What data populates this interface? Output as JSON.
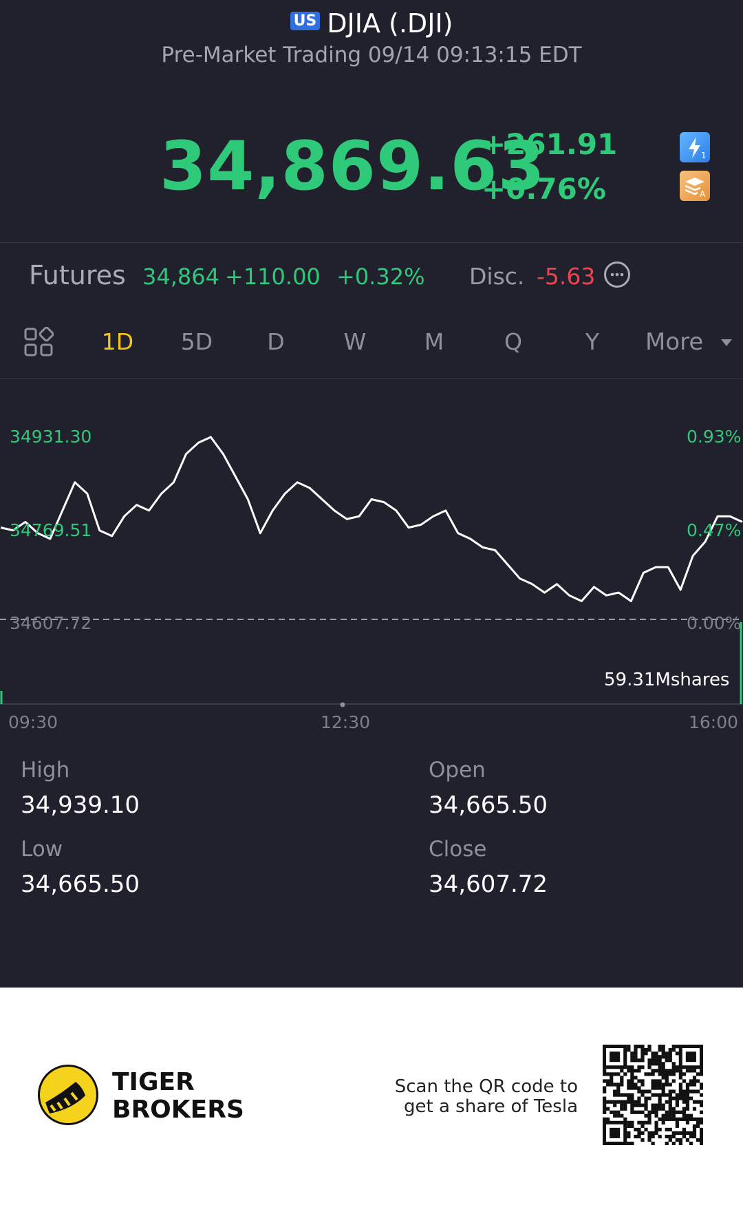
{
  "header": {
    "market_badge": "US",
    "title": "DJIA (.DJI)",
    "subtitle": "Pre-Market Trading 09/14 09:13:15 EDT"
  },
  "quote": {
    "price": "34,869.63",
    "change": "+261.91",
    "change_pct": "+0.76%"
  },
  "futures": {
    "label": "Futures",
    "price": "34,864",
    "change": "+110.00",
    "change_pct": "+0.32%",
    "disc_label": "Disc.",
    "disc_value": "-5.63"
  },
  "tabs": {
    "items": [
      "1D",
      "5D",
      "D",
      "W",
      "M",
      "Q",
      "Y"
    ],
    "active": "1D",
    "more_label": "More"
  },
  "chart_data": {
    "type": "line",
    "y_left_labels": [
      "34931.30",
      "34769.51",
      "34607.72"
    ],
    "y_right_labels": [
      "0.93%",
      "0.47%",
      "0.00%"
    ],
    "x_labels": [
      "09:30",
      "12:30",
      "16:00"
    ],
    "volume_label": "59.31Mshares",
    "ylim": [
      34607.72,
      34931.3
    ],
    "baseline": 34607.72,
    "series": [
      {
        "values": [
          34770,
          34765,
          34780,
          34760,
          34750,
          34800,
          34850,
          34830,
          34765,
          34755,
          34790,
          34810,
          34800,
          34830,
          34850,
          34900,
          34920,
          34930,
          34900,
          34860,
          34820,
          34760,
          34800,
          34830,
          34850,
          34840,
          34820,
          34800,
          34785,
          34790,
          34820,
          34815,
          34800,
          34770,
          34775,
          34790,
          34800,
          34760,
          34750,
          34735,
          34730,
          34705,
          34680,
          34670,
          34655,
          34670,
          34650,
          34640,
          34665,
          34650,
          34655,
          34640,
          34690,
          34700,
          34700,
          34660,
          34720,
          34745,
          34790,
          34790,
          34780
        ]
      }
    ]
  },
  "stats": {
    "high_label": "High",
    "high_value": "34,939.10",
    "open_label": "Open",
    "open_value": "34,665.50",
    "low_label": "Low",
    "low_value": "34,665.50",
    "close_label": "Close",
    "close_value": "34,607.72"
  },
  "footer": {
    "brand_line1": "TIGER",
    "brand_line2": "BROKERS",
    "scan_line1": "Scan the QR code to",
    "scan_line2": "get a share of Tesla"
  },
  "colors": {
    "up": "#2fc97a",
    "down": "#ef4450",
    "active_tab": "#f5c518",
    "background": "#20212c"
  }
}
